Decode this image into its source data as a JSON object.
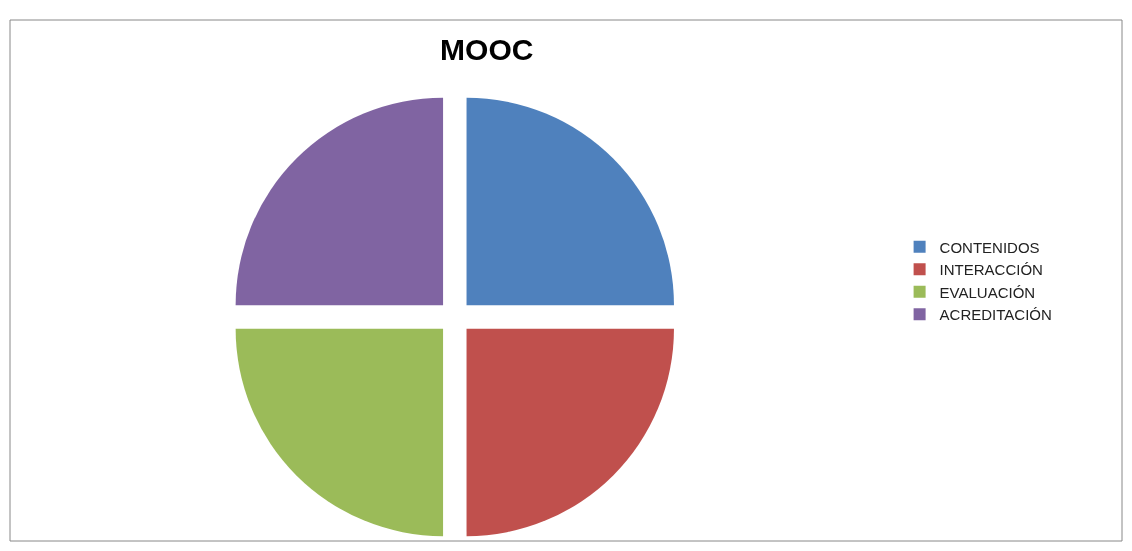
{
  "chart_data": {
    "type": "pie",
    "title": "MOOC",
    "categories": [
      "CONTENIDOS",
      "INTERACCIÓN",
      "EVALUACIÓN",
      "ACREDITACIÓN"
    ],
    "values": [
      25,
      25,
      25,
      25
    ],
    "colors": [
      "#4f81bd",
      "#c0504d",
      "#9bbb59",
      "#8064a2"
    ],
    "legend": "right"
  }
}
